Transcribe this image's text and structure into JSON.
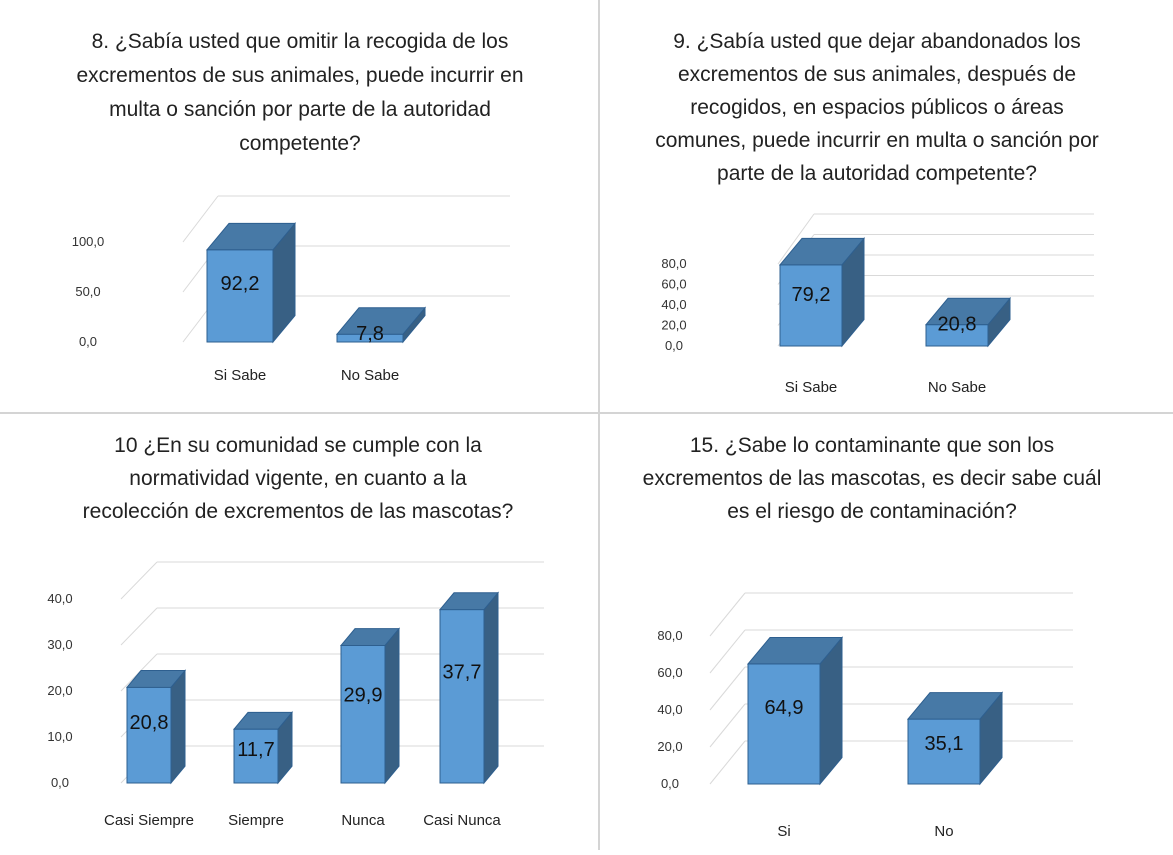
{
  "chart_data": [
    {
      "type": "bar",
      "title": "8. ¿Sabía usted que omitir la recogida de los excrementos de sus animales, puede incurrir en multa o sanción por parte de la autoridad competente?",
      "title_lines": [
        "8. ¿Sabía usted que omitir la recogida de los",
        "excrementos de sus animales, puede incurrir en",
        "multa o sanción por parte de la autoridad",
        "competente?"
      ],
      "categories": [
        "Si Sabe",
        "No Sabe"
      ],
      "values": [
        92.2,
        7.8
      ],
      "value_labels": [
        "92,2",
        "7,8"
      ],
      "ylim": [
        0,
        100
      ],
      "ticks": [
        0,
        50,
        100
      ],
      "tick_labels": [
        "0,0",
        "50,0",
        "100,0"
      ],
      "bar_color": "#5b9bd5",
      "grid": true
    },
    {
      "type": "bar",
      "title": "9. ¿Sabía usted que dejar abandonados los excrementos de sus animales, después de recogidos, en espacios públicos o áreas comunes, puede incurrir en multa o sanción por parte de la autoridad competente?",
      "title_lines": [
        "9. ¿Sabía usted que dejar abandonados los",
        "excrementos de sus animales, después de",
        "recogidos, en espacios públicos o áreas",
        "comunes, puede incurrir en multa o sanción por",
        "parte de la autoridad competente?"
      ],
      "categories": [
        "Si Sabe",
        "No Sabe"
      ],
      "values": [
        79.2,
        20.8
      ],
      "value_labels": [
        "79,2",
        "20,8"
      ],
      "ylim": [
        0,
        80
      ],
      "ticks": [
        0,
        20,
        40,
        60,
        80
      ],
      "tick_labels": [
        "0,0",
        "20,0",
        "40,0",
        "60,0",
        "80,0"
      ],
      "bar_color": "#5b9bd5",
      "grid": true
    },
    {
      "type": "bar",
      "title": "10 ¿En su comunidad se cumple con la normatividad vigente, en cuanto a la recolección de excrementos de las mascotas?",
      "title_lines": [
        "10 ¿En su comunidad se cumple con la",
        "normatividad vigente, en cuanto a la",
        "recolección de excrementos de las mascotas?"
      ],
      "categories": [
        "Casi Siempre",
        "Siempre",
        "Nunca",
        "Casi Nunca"
      ],
      "values": [
        20.8,
        11.7,
        29.9,
        37.7
      ],
      "value_labels": [
        "20,8",
        "11,7",
        "29,9",
        "37,7"
      ],
      "ylim": [
        0,
        40
      ],
      "ticks": [
        0,
        10,
        20,
        30,
        40
      ],
      "tick_labels": [
        "0,0",
        "10,0",
        "20,0",
        "30,0",
        "40,0"
      ],
      "bar_color": "#5b9bd5",
      "grid": true
    },
    {
      "type": "bar",
      "title": "15. ¿Sabe lo contaminante que son los excrementos de las mascotas, es decir sabe cuál es el riesgo de contaminación?",
      "title_lines": [
        "15. ¿Sabe lo contaminante que son los",
        "excrementos de las mascotas, es decir sabe cuál",
        "es el riesgo de contaminación?"
      ],
      "categories": [
        "Si",
        "No"
      ],
      "values": [
        64.9,
        35.1
      ],
      "value_labels": [
        "64,9",
        "35,1"
      ],
      "ylim": [
        0,
        80
      ],
      "ticks": [
        0,
        20,
        40,
        60,
        80
      ],
      "tick_labels": [
        "0,0",
        "20,0",
        "40,0",
        "60,0",
        "80,0"
      ],
      "bar_color": "#5b9bd5",
      "grid": true
    }
  ]
}
